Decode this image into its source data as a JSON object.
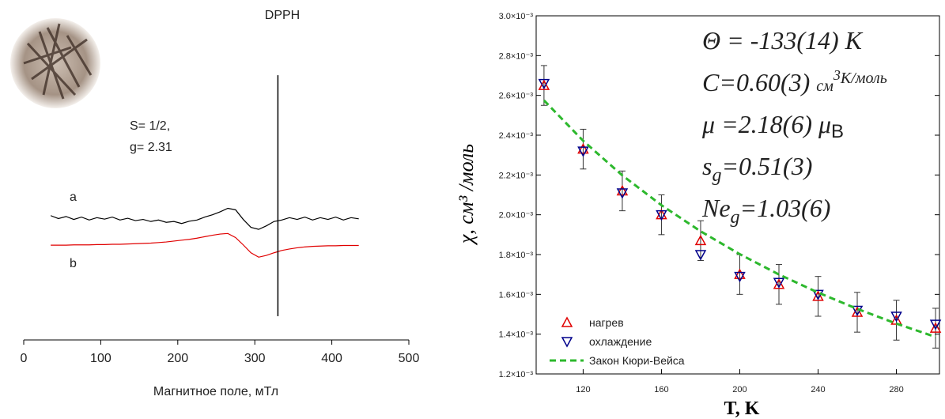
{
  "chart_data": [
    {
      "type": "line",
      "x": [
        35,
        45,
        55,
        65,
        75,
        85,
        95,
        105,
        115,
        125,
        135,
        145,
        155,
        165,
        175,
        185,
        195,
        205,
        215,
        225,
        235,
        245,
        255,
        265,
        275,
        285,
        295,
        305,
        315,
        325,
        335,
        345,
        355,
        365,
        375,
        385,
        395,
        405,
        415,
        425,
        435
      ],
      "xlim": [
        0,
        500
      ],
      "xticks": [
        0,
        100,
        200,
        300,
        400,
        500
      ],
      "ylim": [
        0,
        10
      ],
      "xlabel": "Магнитное поле, мТл",
      "series": [
        {
          "name": "a",
          "color": "#000000",
          "values": [
            4.25,
            4.15,
            4.22,
            4.12,
            4.2,
            4.1,
            4.18,
            4.13,
            4.2,
            4.1,
            4.16,
            4.08,
            4.12,
            4.05,
            4.1,
            4.02,
            4.05,
            3.98,
            4.06,
            4.1,
            4.2,
            4.28,
            4.38,
            4.5,
            4.45,
            4.12,
            3.85,
            3.78,
            3.9,
            4.05,
            4.1,
            4.18,
            4.12,
            4.2,
            4.1,
            4.18,
            4.12,
            4.2,
            4.1,
            4.18,
            4.14
          ]
        },
        {
          "name": "b",
          "color": "#e00000",
          "values": [
            3.24,
            3.24,
            3.24,
            3.25,
            3.25,
            3.25,
            3.26,
            3.26,
            3.27,
            3.27,
            3.28,
            3.29,
            3.3,
            3.31,
            3.33,
            3.35,
            3.38,
            3.41,
            3.44,
            3.48,
            3.53,
            3.58,
            3.62,
            3.64,
            3.5,
            3.25,
            2.98,
            2.83,
            2.89,
            2.98,
            3.06,
            3.11,
            3.15,
            3.18,
            3.2,
            3.21,
            3.22,
            3.22,
            3.23,
            3.23,
            3.23
          ]
        }
      ],
      "dpph": {
        "x": 330,
        "range": [
          0.81,
          9.05
        ]
      },
      "annotations": [
        "DPPH",
        "S= 1/2,",
        "g= 2.31"
      ]
    },
    {
      "type": "scatter",
      "x": [
        100,
        120,
        140,
        160,
        180,
        200,
        220,
        240,
        260,
        280,
        300
      ],
      "xlim": [
        96,
        302
      ],
      "xticks": [
        120,
        160,
        200,
        240,
        280
      ],
      "ylim": [
        0.0012,
        0.003
      ],
      "yticks": [
        {
          "value": 0.0012,
          "label": "1.2×10⁻³"
        },
        {
          "value": 0.0014,
          "label": "1.4×10⁻³"
        },
        {
          "value": 0.0016,
          "label": "1.6×10⁻³"
        },
        {
          "value": 0.0018,
          "label": "1.8×10⁻³"
        },
        {
          "value": 0.002,
          "label": "2.0×10⁻³"
        },
        {
          "value": 0.0022,
          "label": "2.2×10⁻³"
        },
        {
          "value": 0.0024,
          "label": "2.4×10⁻³"
        },
        {
          "value": 0.0026,
          "label": "2.6×10⁻³"
        },
        {
          "value": 0.0028,
          "label": "2.8×10⁻³"
        },
        {
          "value": 0.003,
          "label": "3.0×10⁻³"
        }
      ],
      "xlabel": "T, K",
      "ylabel": "χ, см³ /моль",
      "legend": "lower left",
      "series": [
        {
          "name": "нагрев",
          "color": "#e00000",
          "marker": "triangle-up",
          "values": [
            0.00265,
            0.00233,
            0.00212,
            0.002,
            0.00187,
            0.0017,
            0.00165,
            0.00159,
            0.00151,
            0.00147,
            0.00143
          ],
          "errors": [
            0.0001,
            0.0001,
            0.0001,
            0.0001,
            0.0001,
            0.0001,
            0.0001,
            0.0001,
            0.0001,
            0.0001,
            0.0001
          ]
        },
        {
          "name": "охлаждение",
          "color": "#00008b",
          "marker": "triangle-down",
          "values": [
            0.00266,
            0.00232,
            0.00211,
            0.002,
            0.0018,
            0.00169,
            0.00166,
            0.0016,
            0.00152,
            0.00149,
            0.00145
          ]
        },
        {
          "name": "Закон Кюри-Вейса",
          "color": "#2db82d",
          "style": "dashed",
          "values": [
            0.002575,
            0.002372,
            0.002198,
            0.002048,
            0.001917,
            0.001802,
            0.0017,
            0.001609,
            0.001527,
            0.001453,
            0.001386
          ]
        }
      ],
      "annotations": [
        {
          "parts": [
            {
              "text": "Θ = -133(14) K"
            }
          ]
        },
        {
          "parts": [
            {
              "text": "C=0.60(3) "
            },
            {
              "text": "см",
              "style": "small"
            },
            {
              "text": "3",
              "style": "sup"
            },
            {
              "text": "K/моль",
              "style": "small-down"
            }
          ]
        },
        {
          "parts": [
            {
              "text": "μ =2.18(6) μ"
            },
            {
              "text": "B",
              "style": "sub-sans"
            }
          ]
        },
        {
          "parts": [
            {
              "text": "s"
            },
            {
              "text": "g",
              "style": "sub"
            },
            {
              "text": "=0.51(3)"
            }
          ]
        },
        {
          "parts": [
            {
              "text": "Ne"
            },
            {
              "text": "g",
              "style": "sub"
            },
            {
              "text": "=1.03(6)"
            }
          ]
        }
      ]
    }
  ]
}
